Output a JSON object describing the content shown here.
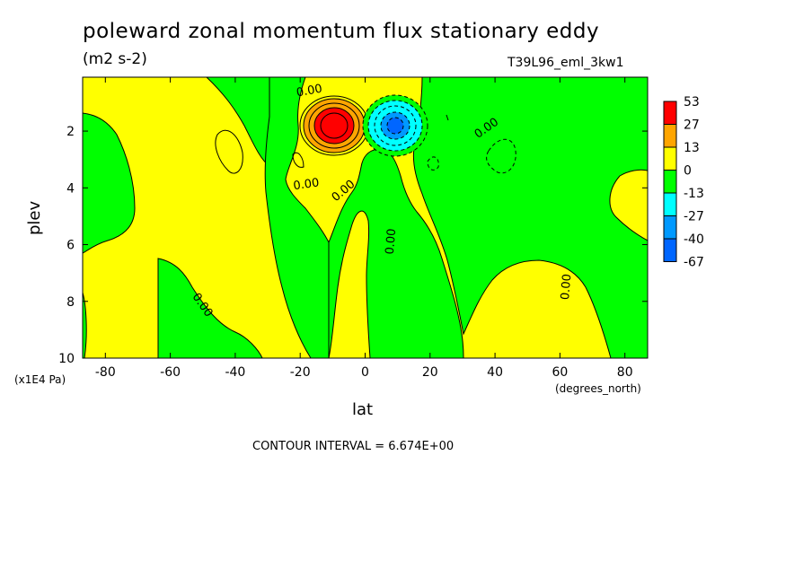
{
  "chart_data": {
    "type": "heatmap",
    "title": "poleward zonal momentum flux stationary eddy",
    "units": "(m2 s-2)",
    "run_id": "T39L96_eml_3kw1",
    "xlabel": "lat",
    "x_units": "(degrees_north)",
    "ylabel": "plev",
    "y_units": "(x1E4 Pa)",
    "xlim": [
      -87,
      87
    ],
    "ylim": [
      10,
      0.1
    ],
    "x_ticks": [
      -80,
      -60,
      -40,
      -20,
      0,
      20,
      40,
      60,
      80
    ],
    "y_ticks": [
      2,
      4,
      6,
      8,
      10
    ],
    "contour_interval_text": "CONTOUR INTERVAL = 6.674E+00",
    "contour_labels": [
      "0.00"
    ],
    "colorbar": {
      "labels": [
        "53",
        "27",
        "13",
        "0",
        "-13",
        "-27",
        "-40",
        "-67"
      ],
      "colors": [
        "#ff0000",
        "#ffa500",
        "#ffff00",
        "#00ff00",
        "#00ffff",
        "#0099ff",
        "#0066ff"
      ]
    },
    "features": [
      {
        "name": "positive maximum",
        "lat": -10,
        "plev": 1.8,
        "value": 53
      },
      {
        "name": "negative minimum",
        "lat": 9,
        "plev": 1.8,
        "value": -67
      }
    ]
  }
}
